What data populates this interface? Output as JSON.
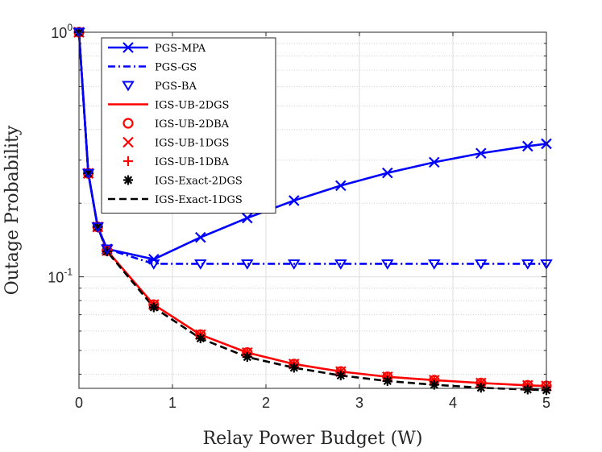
{
  "chart_data": {
    "type": "line",
    "title": "",
    "xlabel": "Relay Power Budget (W)",
    "ylabel": "Outage Probability",
    "xlim": [
      0,
      5
    ],
    "ylim": [
      0.035,
      1.0
    ],
    "yscale": "log",
    "grid": true,
    "legend_position": "top-left",
    "x_ticks": [
      "0",
      "1",
      "2",
      "3",
      "4",
      "5"
    ],
    "y_ticks": [
      {
        "base": "10",
        "exp": "0",
        "value": 1.0
      },
      {
        "base": "10",
        "exp": "-1",
        "value": 0.1
      }
    ],
    "series": [
      {
        "name": "PGS-MPA",
        "color": "#0000ff",
        "line": "solid",
        "marker": "x",
        "x": [
          0,
          0.1,
          0.2,
          0.3,
          0.8,
          1.3,
          1.8,
          2.3,
          2.8,
          3.3,
          3.8,
          4.3,
          4.8,
          5.0
        ],
        "y": [
          1.0,
          0.265,
          0.16,
          0.13,
          0.118,
          0.145,
          0.174,
          0.205,
          0.236,
          0.266,
          0.294,
          0.32,
          0.342,
          0.35
        ]
      },
      {
        "name": "PGS-GS",
        "color": "#0000ff",
        "line": "dashdot",
        "marker": "none",
        "x": [
          0,
          0.1,
          0.2,
          0.3,
          0.8,
          1.3,
          1.8,
          2.3,
          2.8,
          3.3,
          3.8,
          4.3,
          4.8,
          5.0
        ],
        "y": [
          1.0,
          0.265,
          0.16,
          0.13,
          0.113,
          0.113,
          0.113,
          0.113,
          0.113,
          0.113,
          0.113,
          0.113,
          0.113,
          0.113
        ]
      },
      {
        "name": "PGS-BA",
        "color": "#0000ff",
        "line": "none",
        "marker": "triangle-down",
        "x": [
          0,
          0.1,
          0.2,
          0.3,
          0.8,
          1.3,
          1.8,
          2.3,
          2.8,
          3.3,
          3.8,
          4.3,
          4.8,
          5.0
        ],
        "y": [
          1.0,
          0.265,
          0.16,
          0.13,
          0.113,
          0.113,
          0.113,
          0.113,
          0.113,
          0.113,
          0.113,
          0.113,
          0.113,
          0.113
        ]
      },
      {
        "name": "IGS-UB-2DGS",
        "color": "#ff0000",
        "line": "solid",
        "marker": "none",
        "x": [
          0,
          0.1,
          0.2,
          0.3,
          0.8,
          1.3,
          1.8,
          2.3,
          2.8,
          3.3,
          3.8,
          4.3,
          4.8,
          5.0
        ],
        "y": [
          1.0,
          0.265,
          0.16,
          0.128,
          0.077,
          0.058,
          0.049,
          0.044,
          0.041,
          0.039,
          0.0378,
          0.0368,
          0.036,
          0.0358
        ]
      },
      {
        "name": "IGS-UB-2DBA",
        "color": "#ff0000",
        "line": "none",
        "marker": "circle",
        "x": [
          0,
          0.1,
          0.2,
          0.3,
          0.8,
          1.3,
          1.8,
          2.3,
          2.8,
          3.3,
          3.8,
          4.3,
          4.8,
          5.0
        ],
        "y": [
          1.0,
          0.265,
          0.16,
          0.128,
          0.077,
          0.058,
          0.049,
          0.044,
          0.041,
          0.039,
          0.0378,
          0.0368,
          0.036,
          0.0358
        ]
      },
      {
        "name": "IGS-UB-1DGS",
        "color": "#ff0000",
        "line": "none",
        "marker": "x",
        "x": [
          0,
          0.1,
          0.2,
          0.3,
          0.8,
          1.3,
          1.8,
          2.3,
          2.8,
          3.3,
          3.8,
          4.3,
          4.8,
          5.0
        ],
        "y": [
          1.0,
          0.265,
          0.16,
          0.128,
          0.077,
          0.058,
          0.049,
          0.044,
          0.041,
          0.039,
          0.0378,
          0.0368,
          0.036,
          0.0358
        ]
      },
      {
        "name": "IGS-UB-1DBA",
        "color": "#ff0000",
        "line": "none",
        "marker": "plus",
        "x": [
          0,
          0.1,
          0.2,
          0.3,
          0.8,
          1.3,
          1.8,
          2.3,
          2.8,
          3.3,
          3.8,
          4.3,
          4.8,
          5.0
        ],
        "y": [
          1.0,
          0.265,
          0.16,
          0.128,
          0.077,
          0.058,
          0.049,
          0.044,
          0.041,
          0.039,
          0.0378,
          0.0368,
          0.036,
          0.0358
        ]
      },
      {
        "name": "IGS-Exact-2DGS",
        "color": "#000000",
        "line": "none",
        "marker": "asterisk",
        "x": [
          0,
          0.1,
          0.2,
          0.3,
          0.8,
          1.3,
          1.8,
          2.3,
          2.8,
          3.3,
          3.8,
          4.3,
          4.8,
          5.0
        ],
        "y": [
          1.0,
          0.265,
          0.16,
          0.127,
          0.075,
          0.056,
          0.047,
          0.0425,
          0.0395,
          0.0375,
          0.0362,
          0.0352,
          0.0346,
          0.0344
        ]
      },
      {
        "name": "IGS-Exact-1DGS",
        "color": "#000000",
        "line": "dashed",
        "marker": "none",
        "x": [
          0,
          0.1,
          0.2,
          0.3,
          0.8,
          1.3,
          1.8,
          2.3,
          2.8,
          3.3,
          3.8,
          4.3,
          4.8,
          5.0
        ],
        "y": [
          1.0,
          0.265,
          0.16,
          0.127,
          0.075,
          0.056,
          0.047,
          0.0425,
          0.0395,
          0.0375,
          0.0362,
          0.0352,
          0.0346,
          0.0344
        ]
      }
    ]
  }
}
